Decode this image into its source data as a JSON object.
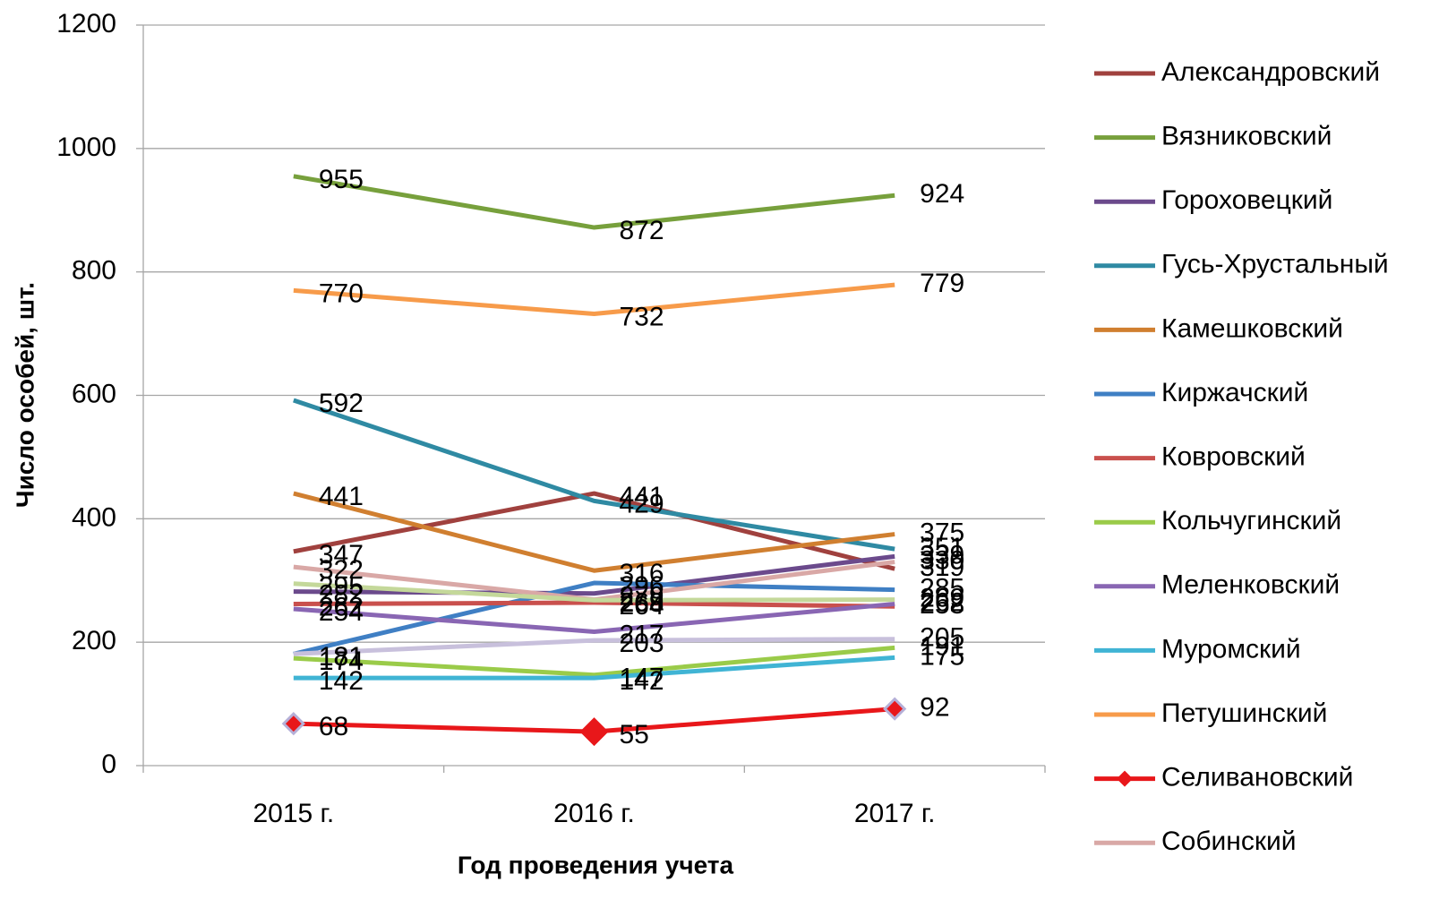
{
  "chart_data": {
    "type": "line",
    "xlabel": "Год проведения учета",
    "ylabel": "Число особей, шт.",
    "categories": [
      "2015 г.",
      "2016 г.",
      "2017 г."
    ],
    "ylim": [
      0,
      1200
    ],
    "yticks": [
      0,
      200,
      400,
      600,
      800,
      1000,
      1200
    ],
    "grid": true,
    "legend": "right",
    "series": [
      {
        "name": "Александровский",
        "color": "#a0413e",
        "values": [
          347,
          441,
          319
        ]
      },
      {
        "name": "Вязниковский",
        "color": "#77a03c",
        "values": [
          955,
          872,
          924
        ]
      },
      {
        "name": "Гороховецкий",
        "color": "#6b4a8c",
        "values": [
          282,
          279,
          339
        ]
      },
      {
        "name": "Гусь-Хрустальный",
        "color": "#2f8aa3",
        "values": [
          592,
          429,
          351
        ]
      },
      {
        "name": "Камешковский",
        "color": "#d07f30",
        "values": [
          441,
          316,
          375
        ]
      },
      {
        "name": "Киржачский",
        "color": "#3f7fc4",
        "values": [
          181,
          296,
          285
        ]
      },
      {
        "name": "Ковровский",
        "color": "#c9504d",
        "values": [
          262,
          264,
          258
        ]
      },
      {
        "name": "Кольчугинский",
        "color": "#9acb49",
        "values": [
          174,
          147,
          191
        ]
      },
      {
        "name": "Меленковский",
        "color": "#8966b3",
        "values": [
          254,
          217,
          262
        ]
      },
      {
        "name": "Муромский",
        "color": "#40b4d4",
        "values": [
          142,
          142,
          175
        ]
      },
      {
        "name": "Петушинский",
        "color": "#f79b4a",
        "values": [
          770,
          732,
          779
        ]
      },
      {
        "name": "Селивановский",
        "color": "#e8171a",
        "values": [
          68,
          55,
          92
        ],
        "marker": "diamond"
      },
      {
        "name": "Собинский",
        "color": "#d9a8a6",
        "values": [
          322,
          269,
          330
        ]
      },
      {
        "color": "#c4d89a",
        "values": [
          295,
          268,
          269
        ]
      },
      {
        "color": "#c8c0dc",
        "values": [
          181,
          203,
          205
        ]
      }
    ]
  }
}
